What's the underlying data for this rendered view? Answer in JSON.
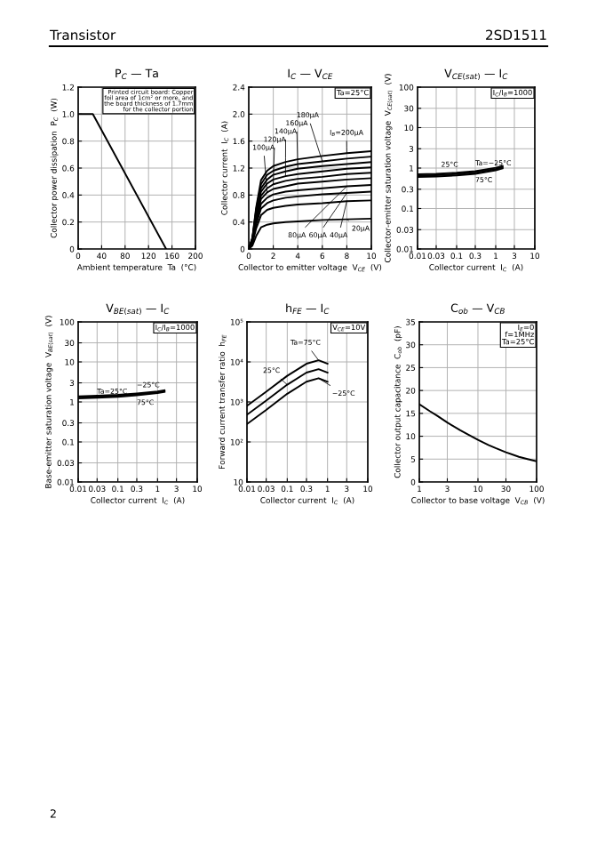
{
  "chart_data": [
    {
      "type": "line",
      "title": "P$_{C}$ — Ta",
      "xlabel": "Ambient temperature  Ta  (°C)",
      "ylabel": "Collector power dissipation  P$_{C}$  (W)",
      "x": [
        0,
        25,
        150
      ],
      "series": [
        {
          "color": "#000000",
          "values": [
            1.0,
            1.0,
            0
          ]
        }
      ],
      "xlim": [
        0,
        200
      ],
      "ylim": [
        0,
        1.2
      ],
      "xticks": [
        0,
        40,
        80,
        120,
        160,
        200
      ],
      "yticks": [
        0,
        0.2,
        0.4,
        0.6,
        0.8,
        {
          "value": 1,
          "label": "1.0"
        },
        1.2
      ],
      "grid": true,
      "annotations": [
        "Printed circuit board: Copper\nfoil area of 1cm² or more, and\nthe board thickness of 1.7mm\nfor the collector portion"
      ]
    },
    {
      "type": "line",
      "title": "I$_{C}$ — V$_{CE}$",
      "xlabel": "Collector to emitter voltage  V$_{CE}$  (V)",
      "ylabel": "Collector current  I$_{C}$  (A)",
      "x": [
        0,
        0.3,
        0.6,
        1,
        1.5,
        2,
        3,
        4,
        6,
        8,
        10
      ],
      "series": [
        {
          "color": "#000000",
          "values": [
            0,
            0.05,
            0.19,
            0.32,
            0.36,
            0.38,
            0.4,
            0.41,
            0.43,
            0.44,
            0.45
          ]
        },
        {
          "color": "#000000",
          "values": [
            0,
            0.09,
            0.3,
            0.5,
            0.58,
            0.61,
            0.64,
            0.66,
            0.68,
            0.71,
            0.72
          ]
        },
        {
          "color": "#000000",
          "values": [
            0,
            0.1,
            0.36,
            0.6,
            0.68,
            0.72,
            0.76,
            0.78,
            0.81,
            0.83,
            0.85
          ]
        },
        {
          "color": "#000000",
          "values": [
            0,
            0.11,
            0.4,
            0.67,
            0.76,
            0.81,
            0.85,
            0.87,
            0.9,
            0.93,
            0.95
          ]
        },
        {
          "color": "#000000",
          "values": [
            0,
            0.13,
            0.44,
            0.74,
            0.84,
            0.89,
            0.93,
            0.97,
            1.0,
            1.03,
            1.05
          ]
        },
        {
          "color": "#000000",
          "values": [
            0,
            0.14,
            0.47,
            0.79,
            0.9,
            0.96,
            1.01,
            1.04,
            1.07,
            1.11,
            1.13
          ]
        },
        {
          "color": "#000000",
          "values": [
            0,
            0.15,
            0.51,
            0.85,
            0.97,
            1.03,
            1.08,
            1.11,
            1.15,
            1.19,
            1.21
          ]
        },
        {
          "color": "#000000",
          "values": [
            0,
            0.15,
            0.54,
            0.9,
            1.03,
            1.1,
            1.15,
            1.19,
            1.23,
            1.26,
            1.29
          ]
        },
        {
          "color": "#000000",
          "values": [
            0,
            0.16,
            0.58,
            0.96,
            1.1,
            1.16,
            1.22,
            1.26,
            1.3,
            1.34,
            1.37
          ]
        },
        {
          "color": "#000000",
          "values": [
            0,
            0.17,
            0.61,
            1.02,
            1.16,
            1.23,
            1.29,
            1.33,
            1.38,
            1.42,
            1.45
          ]
        }
      ],
      "xlim": [
        0,
        10
      ],
      "ylim": [
        0,
        2.4
      ],
      "xticks": [
        0,
        2,
        4,
        6,
        8,
        10
      ],
      "yticks": [
        0,
        0.4,
        0.8,
        1.2,
        1.6,
        {
          "value": 2,
          "label": "2.0"
        },
        2.4
      ],
      "grid": true,
      "annotations": [
        "Ta=25°C",
        {
          "text": "I$_{B}$=200μA",
          "x": 8,
          "y": 1.42
        },
        {
          "text": "180μA",
          "x": 6,
          "y": 1.3
        },
        {
          "text": "160μA",
          "x": 4,
          "y": 1.19
        },
        {
          "text": "140μA",
          "x": 3,
          "y": 1.08
        },
        {
          "text": "120μA",
          "x": 2,
          "y": 0.96
        },
        {
          "text": "100μA",
          "x": 1.5,
          "y": 0.84
        },
        {
          "text": "80μA",
          "x": 8,
          "y": 0.93
        },
        {
          "text": "60μA",
          "x": 8,
          "y": 0.83
        },
        {
          "text": "40μA",
          "x": 8,
          "y": 0.71
        },
        {
          "text": "20μA",
          "x": 8,
          "y": 0.44
        }
      ]
    },
    {
      "type": "line",
      "title": "V$_{CE(sat)}$ — I$_{C}$",
      "xlabel": "Collector current  I$_{C}$  (A)",
      "ylabel": "Collector-emitter saturation voltage  V$_{CE(sat)}$  (V)",
      "log": "xy",
      "x": [
        0.01,
        0.03,
        0.1,
        0.3,
        1,
        1.5
      ],
      "series": [
        {
          "color": "#000000",
          "values": [
            0.6,
            0.62,
            0.66,
            0.72,
            0.88,
            0.98
          ]
        },
        {
          "color": "#000000",
          "values": [
            0.65,
            0.67,
            0.71,
            0.78,
            0.95,
            1.05
          ]
        },
        {
          "color": "#000000",
          "values": [
            0.7,
            0.72,
            0.77,
            0.84,
            1.02,
            1.12
          ]
        }
      ],
      "xlim": [
        0.01,
        10
      ],
      "ylim": [
        0.01,
        100
      ],
      "xticks": [
        0.01,
        0.03,
        0.1,
        0.3,
        1,
        3,
        10
      ],
      "yticks": [
        0.01,
        0.03,
        0.1,
        0.3,
        1,
        3,
        10,
        30,
        100
      ],
      "grid": true,
      "annotations": [
        "I$_{C}$/I$_{B}$=1000",
        {
          "text": "25°C",
          "x": 0.04,
          "y": 1.2
        },
        {
          "text": "Ta=−25°C",
          "x": 0.3,
          "y": 1.3
        },
        {
          "text": "75°C",
          "x": 0.3,
          "y": 0.5
        }
      ]
    },
    {
      "type": "line",
      "title": "V$_{BE(sat)}$ — I$_{C}$",
      "xlabel": "Collector current  I$_{C}$  (A)",
      "ylabel": "Base-emitter saturation voltage  V$_{BE(sat)}$  (V)",
      "log": "xy",
      "x": [
        0.01,
        0.03,
        0.1,
        0.3,
        1,
        1.5
      ],
      "series": [
        {
          "color": "#000000",
          "values": [
            1.38,
            1.43,
            1.5,
            1.63,
            1.83,
            1.95
          ]
        },
        {
          "color": "#000000",
          "values": [
            1.3,
            1.35,
            1.42,
            1.55,
            1.75,
            1.87
          ]
        },
        {
          "color": "#000000",
          "values": [
            1.22,
            1.27,
            1.34,
            1.47,
            1.67,
            1.79
          ]
        }
      ],
      "xlim": [
        0.01,
        10
      ],
      "ylim": [
        0.01,
        100
      ],
      "xticks": [
        0.01,
        0.03,
        0.1,
        0.3,
        1,
        3,
        10
      ],
      "yticks": [
        0.01,
        0.03,
        0.1,
        0.3,
        1,
        3,
        10,
        30,
        100
      ],
      "grid": true,
      "annotations": [
        "I$_{C}$/I$_{B}$=1000",
        {
          "text": "−25°C",
          "x": 0.3,
          "y": 2.6
        },
        {
          "text": "Ta=25°C",
          "x": 0.03,
          "y": 1.8
        },
        {
          "text": "75°C",
          "x": 0.3,
          "y": 0.95
        }
      ]
    },
    {
      "type": "line",
      "title": "h$_{FE}$ — I$_{C}$",
      "xlabel": "Collector current  I$_{C}$  (A)",
      "ylabel": "Forward current transfer ratio  h$_{FE}$",
      "log": "xy",
      "x": [
        0.01,
        0.03,
        0.1,
        0.3,
        0.6,
        1
      ],
      "series": [
        {
          "color": "#000000",
          "values": [
            800,
            1800,
            4500,
            9000,
            11000,
            9000
          ]
        },
        {
          "color": "#000000",
          "values": [
            480,
            1080,
            2700,
            5400,
            6600,
            5400
          ]
        },
        {
          "color": "#000000",
          "values": [
            280,
            630,
            1600,
            3200,
            3900,
            3200
          ]
        }
      ],
      "xlim": [
        0.01,
        10
      ],
      "ylim": [
        10,
        100000
      ],
      "xticks": [
        0.01,
        0.03,
        0.1,
        0.3,
        1,
        3,
        10
      ],
      "yticks": [
        {
          "value": 10,
          "label": "10"
        },
        {
          "value": 100,
          "label": "10²"
        },
        {
          "value": 1000,
          "label": "10³"
        },
        {
          "value": 10000,
          "label": "10⁴"
        },
        {
          "value": 100000,
          "label": "10⁵"
        }
      ],
      "grid": true,
      "annotations": [
        "V$_{CE}$=10V",
        {
          "text": "Ta=75°C",
          "x": 0.6,
          "y": 11000
        },
        {
          "text": "25°C",
          "x": 0.1,
          "y": 2700
        },
        {
          "text": "−25°C",
          "x": 0.6,
          "y": 3900
        }
      ]
    },
    {
      "type": "line",
      "title": "C$_{ob}$ — V$_{CB}$",
      "xlabel": "Collector to base voltage  V$_{CB}$  (V)",
      "ylabel": "Collector output capacitance  C$_{ob}$  (pF)",
      "log": "x",
      "x": [
        1,
        1.5,
        2,
        3,
        5,
        7,
        10,
        15,
        20,
        30,
        50,
        70,
        100
      ],
      "series": [
        {
          "color": "#000000",
          "values": [
            17,
            15.5,
            14.5,
            13,
            11.3,
            10.3,
            9.2,
            8.1,
            7.4,
            6.5,
            5.5,
            5,
            4.5
          ]
        }
      ],
      "xlim": [
        1,
        100
      ],
      "ylim": [
        0,
        35
      ],
      "xticks": [
        1,
        3,
        10,
        30,
        100
      ],
      "yticks": [
        0,
        5,
        10,
        15,
        20,
        25,
        30,
        35
      ],
      "grid": true,
      "annotations": [
        "I$_{E}$=0\nf=1MHz\nTa=25°C"
      ]
    },
    {
      "type": "other",
      "title": "Transistor",
      "subtitle": "2SD1511",
      "annotations": [
        "2"
      ]
    }
  ]
}
